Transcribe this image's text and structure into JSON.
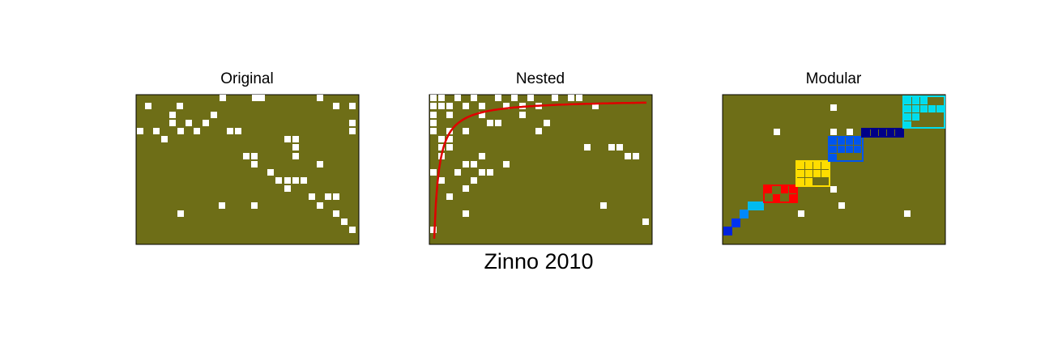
{
  "panels": [
    {
      "title": "Original"
    },
    {
      "title": "Nested"
    },
    {
      "title": "Modular"
    }
  ],
  "caption": "Zinno 2010"
}
